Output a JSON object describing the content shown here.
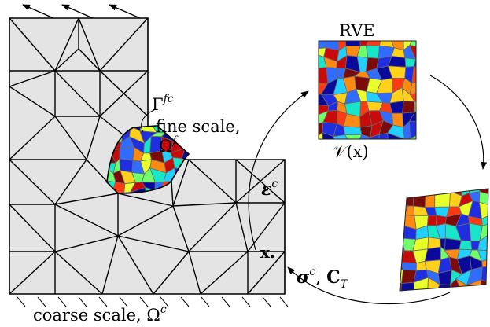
{
  "labels": {
    "rve_title": "RVE",
    "fine_boundary": "Γ",
    "fine_boundary_sup": "fc",
    "fine_scale": "fine scale,",
    "fine_domain": "Ω",
    "fine_domain_sup": "f",
    "rve_field": "𝒱(x)",
    "strain": "ε",
    "strain_sup": "c",
    "point": "x.",
    "stress": "σ",
    "stress_sup": "c",
    "tangent": "C",
    "tangent_sub": "T",
    "coarse_scale": "coarse scale, Ω",
    "coarse_scale_sup": "c"
  },
  "colors": {
    "mesh_fill": "#e4e4e4",
    "stroke": "#000000",
    "voronoi_palette": [
      "#1f2ee0",
      "#0a0a9a",
      "#2f6cff",
      "#22d0ff",
      "#19e6c8",
      "#6fff6a",
      "#e8ff2a",
      "#ffd11a",
      "#ff8a12",
      "#ff3a12",
      "#c80a0a",
      "#7b0a0a"
    ]
  }
}
